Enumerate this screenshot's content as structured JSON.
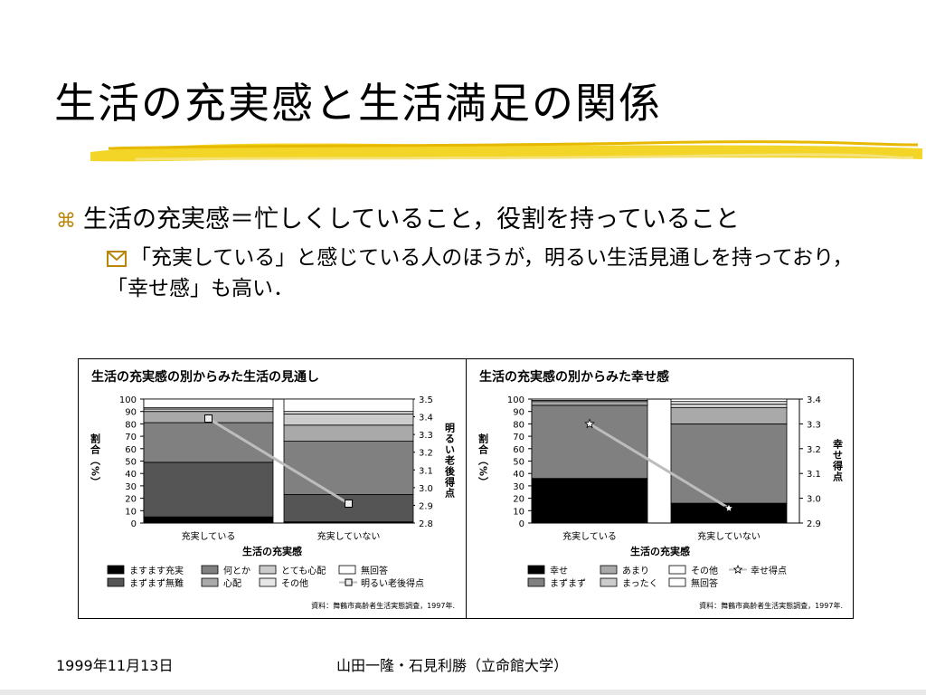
{
  "slide": {
    "title": "生活の充実感と生活満足の関係",
    "bullet1": "生活の充実感＝忙しくしていること，役割を持っていること",
    "bullet2": "「充実している」と感じている人のほうが，明るい生活見通しを持っており，「幸せ感」も高い．",
    "footer_date": "1999年11月13日",
    "footer_authors": "山田一隆・石見利勝（立命館大学）"
  },
  "colors": {
    "brush": "#f2d31b",
    "bullet_mark": "#b8860b"
  },
  "chart_data": [
    {
      "type": "bar",
      "stacked": true,
      "title": "生活の充実感の別からみた生活の見通し",
      "xlabel": "生活の充実感",
      "ylabel": "割合（%）",
      "y2label": "明るい老後得点",
      "ylim": [
        0,
        100
      ],
      "y2lim": [
        2.8,
        3.5
      ],
      "yticks": [
        "0",
        "10",
        "20",
        "30",
        "40",
        "50",
        "60",
        "70",
        "80",
        "90",
        "100"
      ],
      "y2ticks": [
        "2.8",
        "2.9",
        "3.0",
        "3.1",
        "3.2",
        "3.3",
        "3.4",
        "3.5"
      ],
      "categories": [
        "充実している",
        "充実していない"
      ],
      "series": [
        {
          "name": "ますます充実",
          "color": "#000000",
          "values": [
            5,
            1
          ]
        },
        {
          "name": "まずまず無難",
          "color": "#555555",
          "values": [
            44,
            22
          ]
        },
        {
          "name": "何とか",
          "color": "#808080",
          "values": [
            32,
            43
          ]
        },
        {
          "name": "心配",
          "color": "#a9a9a9",
          "values": [
            9,
            13
          ]
        },
        {
          "name": "とても心配",
          "color": "#cccccc",
          "values": [
            2,
            9
          ]
        },
        {
          "name": "その他",
          "color": "#e6e6e6",
          "values": [
            1,
            2
          ]
        },
        {
          "name": "無回答",
          "color": "#ffffff",
          "values": [
            7,
            10
          ]
        }
      ],
      "line": {
        "name": "明るい老後得点",
        "values": [
          3.39,
          2.91
        ],
        "marker": "square"
      },
      "source": "資料：舞鶴市高齢者生活実態調査，1997年."
    },
    {
      "type": "bar",
      "stacked": true,
      "title": "生活の充実感の別からみた幸せ感",
      "xlabel": "生活の充実感",
      "ylabel": "割合（%）",
      "y2label": "幸せ得点",
      "ylim": [
        0,
        100
      ],
      "y2lim": [
        2.9,
        3.4
      ],
      "yticks": [
        "0",
        "10",
        "20",
        "30",
        "40",
        "50",
        "60",
        "70",
        "80",
        "90",
        "100"
      ],
      "y2ticks": [
        "2.9",
        "3.0",
        "3.1",
        "3.2",
        "3.3",
        "3.4"
      ],
      "categories": [
        "充実している",
        "充実していない"
      ],
      "series": [
        {
          "name": "幸せ",
          "color": "#000000",
          "values": [
            36,
            16
          ]
        },
        {
          "name": "まずまず",
          "color": "#808080",
          "values": [
            59,
            64
          ]
        },
        {
          "name": "あまり",
          "color": "#a9a9a9",
          "values": [
            3,
            13
          ]
        },
        {
          "name": "まったく",
          "color": "#cccccc",
          "values": [
            0,
            3
          ]
        },
        {
          "name": "その他",
          "color": "#ffffff",
          "values": [
            1,
            2
          ]
        },
        {
          "name": "無回答",
          "color": "#ffffff",
          "values": [
            1,
            2
          ]
        }
      ],
      "line": {
        "name": "幸せ得点",
        "values": [
          3.3,
          2.96
        ],
        "marker": "star"
      },
      "source": "資料：舞鶴市高齢者生活実態調査，1997年."
    }
  ]
}
